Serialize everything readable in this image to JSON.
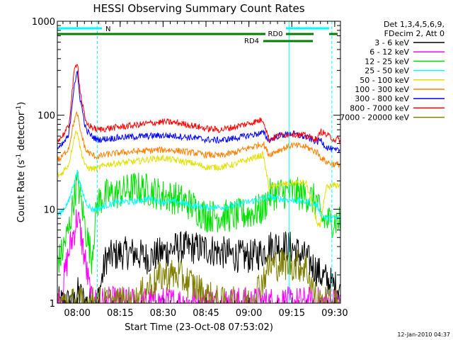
{
  "chart_data": {
    "type": "line",
    "title": "HESSI Observing Summary Count Rates",
    "xlabel": "Start Time (23-Oct-08 07:53:02)",
    "ylabel": "Count Rate (s⁻¹ detector⁻¹)",
    "ylabel_main": "Count Rate (s",
    "ylabel_sup1": "-1",
    "ylabel_mid": " detector",
    "ylabel_sup2": "-1",
    "ylabel_end": ")",
    "y_scale": "log",
    "ylim": [
      1,
      1000
    ],
    "xlim": [
      "07:53:02",
      "09:32:00"
    ],
    "x_ticks": [
      "08:00",
      "08:15",
      "08:30",
      "08:45",
      "09:00",
      "09:15",
      "09:30"
    ],
    "y_ticks": [
      "1",
      "10",
      "100",
      "1000"
    ],
    "legend_position": "top-right",
    "legend_header": [
      "Det 1,3,4,5,6,9,",
      "FDecim 2, Att 0"
    ],
    "footer_timestamp": "12-Jan-2010 04:37",
    "annotations": [
      {
        "label": "N",
        "start": "07:53",
        "end": "08:07",
        "color": "#00ffff"
      },
      {
        "label": "RD0",
        "start": "07:53",
        "end": "09:31",
        "color": "#007f00"
      },
      {
        "label": "RD4",
        "start": "09:10",
        "end": "09:27",
        "color": "#007f00"
      }
    ],
    "vertical_markers": [
      {
        "time": "07:53",
        "style": "solid",
        "color": "#00ffff"
      },
      {
        "time": "08:07",
        "style": "dashed",
        "color": "#00ffff"
      },
      {
        "time": "09:14",
        "style": "solid",
        "color": "#00ffff"
      },
      {
        "time": "09:29",
        "style": "dashed",
        "color": "#00ffff"
      }
    ],
    "x": [
      "07:54",
      "07:57",
      "07:59",
      "08:00",
      "08:01",
      "08:03",
      "08:05",
      "08:07",
      "08:10",
      "08:15",
      "08:20",
      "08:25",
      "08:30",
      "08:35",
      "08:40",
      "08:45",
      "08:50",
      "08:55",
      "09:00",
      "09:05",
      "09:07",
      "09:10",
      "09:15",
      "09:20",
      "09:24",
      "09:25",
      "09:27",
      "09:30"
    ],
    "series": [
      {
        "name": "3 - 6 keV",
        "color": "#000000",
        "values": [
          1.0,
          1.0,
          1.0,
          1.3,
          1.2,
          1.0,
          1.0,
          1.0,
          3.0,
          3.4,
          3.4,
          3.0,
          3.5,
          3.9,
          3.9,
          3.8,
          3.5,
          3.2,
          3.1,
          3.5,
          4.0,
          4.2,
          3.9,
          3.0,
          2.2,
          2.0,
          1.8,
          1.5
        ]
      },
      {
        "name": "6 - 12 keV",
        "color": "#ff00ff",
        "values": [
          1.0,
          3.5,
          6.0,
          8.5,
          6.0,
          2.5,
          1.0,
          1.0,
          1.0,
          1.0,
          1.0,
          1.0,
          1.0,
          1.0,
          1.0,
          1.0,
          1.0,
          1.0,
          1.0,
          1.0,
          1.0,
          1.0,
          1.0,
          1.0,
          1.0,
          1.0,
          1.0,
          1.0
        ]
      },
      {
        "name": "12 - 25 keV",
        "color": "#00e000",
        "values": [
          3.0,
          6.0,
          14.0,
          19.0,
          14.0,
          6.0,
          3.0,
          12.0,
          14.0,
          15.0,
          17.0,
          16.0,
          14.0,
          13.0,
          11.0,
          8.5,
          8.5,
          8.5,
          9.0,
          10.0,
          14.0,
          15.0,
          15.0,
          14.0,
          12.0,
          8.0,
          7.5,
          7.5
        ]
      },
      {
        "name": "25 - 50 keV",
        "color": "#00ffff",
        "values": [
          9.0,
          12.0,
          20.0,
          25.0,
          18.0,
          12.0,
          10.0,
          10.0,
          11.0,
          12.0,
          12.0,
          13.0,
          12.0,
          12.0,
          11.0,
          10.5,
          10.5,
          11.0,
          12.0,
          13.0,
          13.5,
          13.0,
          12.5,
          12.0,
          11.0,
          9.0,
          8.0,
          8.0
        ]
      },
      {
        "name": "50 - 100 keV",
        "color": "#e0e000",
        "values": [
          23.0,
          30.0,
          60.0,
          70.0,
          45.0,
          28.0,
          27.0,
          27.0,
          30.0,
          31.0,
          32.0,
          34.0,
          35.0,
          33.0,
          31.0,
          28.0,
          28.0,
          30.0,
          34.0,
          38.0,
          17.0,
          18.0,
          19.0,
          19.0,
          7.0,
          6.5,
          17.0,
          18.0
        ]
      },
      {
        "name": "100 - 300 keV",
        "color": "#ff8000",
        "values": [
          34.0,
          45.0,
          90.0,
          105.0,
          70.0,
          42.0,
          38.0,
          36.0,
          38.0,
          40.0,
          41.0,
          42.0,
          43.0,
          42.0,
          40.0,
          38.0,
          37.0,
          40.0,
          45.0,
          50.0,
          38.0,
          42.0,
          48.0,
          46.0,
          40.0,
          36.0,
          32.0,
          30.0
        ]
      },
      {
        "name": "300 - 800 keV",
        "color": "#0000ff",
        "values": [
          45.0,
          60.0,
          220.0,
          280.0,
          150.0,
          70.0,
          60.0,
          55.0,
          56.0,
          58.0,
          59.0,
          60.0,
          61.0,
          60.0,
          58.0,
          55.0,
          54.0,
          57.0,
          61.0,
          65.0,
          54.0,
          60.0,
          64.0,
          58.0,
          52.0,
          55.0,
          46.0,
          42.0
        ]
      },
      {
        "name": "800 - 7000 keV",
        "color": "#ff0000",
        "values": [
          56.0,
          75.0,
          300.0,
          380.0,
          180.0,
          82.0,
          75.0,
          70.0,
          72.0,
          75.0,
          78.0,
          82.0,
          85.0,
          83.0,
          78.0,
          72.0,
          70.0,
          75.0,
          82.0,
          90.0,
          55.0,
          60.0,
          64.0,
          60.0,
          55.0,
          68.0,
          62.0,
          55.0
        ]
      },
      {
        "name": "7000 - 20000 keV",
        "color": "#808000",
        "values": [
          1.0,
          1.0,
          1.0,
          1.0,
          1.0,
          1.0,
          1.0,
          1.0,
          1.0,
          1.0,
          1.0,
          1.5,
          2.0,
          2.0,
          1.6,
          1.2,
          1.0,
          1.0,
          1.0,
          1.8,
          2.5,
          2.6,
          2.6,
          2.4,
          1.0,
          1.0,
          1.0,
          1.0
        ]
      }
    ]
  }
}
